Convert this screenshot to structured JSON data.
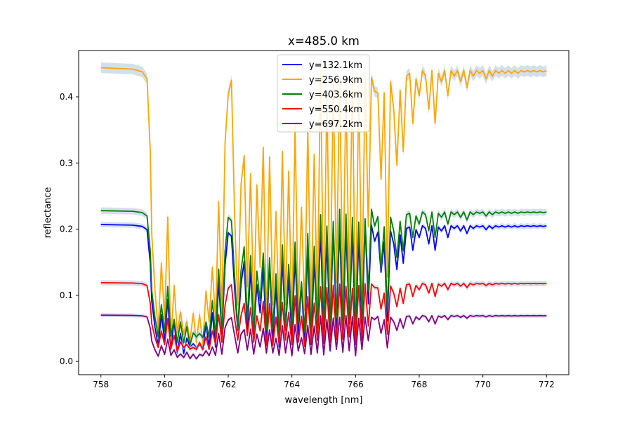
{
  "chart_data": {
    "type": "line",
    "title": "x=485.0 km",
    "xlabel": "wavelength [nm]",
    "ylabel": "reflectance",
    "xlim": [
      757.3,
      772.7
    ],
    "ylim": [
      -0.02,
      0.47
    ],
    "xticks": [
      758,
      760,
      762,
      764,
      766,
      768,
      770,
      772
    ],
    "yticks": [
      0.0,
      0.1,
      0.2,
      0.3,
      0.4
    ],
    "ytick_labels": [
      "0.0",
      "0.1",
      "0.2",
      "0.3",
      "0.4"
    ],
    "grid": false,
    "legend_position": "upper-center",
    "band_color": "#b0c4de",
    "series": [
      {
        "name": "y=132.1km",
        "color": "#0000ff",
        "continuum": 0.207,
        "floor": 0.012,
        "jitter": 0.004
      },
      {
        "name": "y=256.9km",
        "color": "#ffa500",
        "continuum": 0.444,
        "floor": 0.022,
        "jitter": 0.008
      },
      {
        "name": "y=403.6km",
        "color": "#008000",
        "continuum": 0.228,
        "floor": 0.025,
        "jitter": 0.005
      },
      {
        "name": "y=550.4km",
        "color": "#ff0000",
        "continuum": 0.119,
        "floor": 0.015,
        "jitter": 0.004
      },
      {
        "name": "y=697.2km",
        "color": "#800080",
        "continuum": 0.07,
        "floor": 0.004,
        "jitter": 0.003
      }
    ],
    "profile": {
      "x": [
        758.0,
        759.0,
        759.3,
        759.45,
        759.55,
        759.6,
        759.7,
        759.8,
        759.9,
        760.0,
        760.1,
        760.2,
        760.3,
        760.4,
        760.5,
        760.6,
        760.7,
        760.8,
        760.9,
        761.0,
        761.1,
        761.2,
        761.3,
        761.4,
        761.5,
        761.6,
        761.7,
        761.8,
        761.9,
        762.0,
        762.1,
        762.2,
        762.3,
        762.4,
        762.5,
        762.6,
        762.7,
        762.8,
        762.9,
        763.0,
        763.1,
        763.2,
        763.3,
        763.4,
        763.5,
        763.6,
        763.7,
        763.8,
        763.9,
        764.0,
        764.1,
        764.2,
        764.3,
        764.4,
        764.5,
        764.6,
        764.7,
        764.8,
        764.9,
        765.0,
        765.1,
        765.2,
        765.3,
        765.4,
        765.5,
        765.6,
        765.7,
        765.8,
        765.9,
        766.0,
        766.1,
        766.2,
        766.3,
        766.4,
        766.5,
        766.6,
        766.7,
        766.8,
        766.9,
        767.0,
        767.1,
        767.2,
        767.3,
        767.4,
        767.5,
        767.6,
        767.7,
        767.8,
        767.9,
        768.0,
        768.1,
        768.2,
        768.3,
        768.4,
        768.5,
        768.6,
        768.7,
        768.8,
        768.9,
        769.0,
        769.1,
        769.2,
        769.3,
        769.4,
        769.5,
        769.6,
        769.7,
        769.8,
        769.9,
        770.0,
        770.1,
        770.2,
        770.3,
        770.4,
        770.5,
        770.6,
        770.7,
        770.8,
        770.9,
        771.0,
        771.1,
        771.2,
        771.3,
        771.4,
        771.5,
        771.6,
        771.7,
        771.8,
        771.9,
        772.0
      ],
      "f": [
        1.0,
        0.995,
        0.985,
        0.96,
        0.7,
        0.4,
        0.2,
        0.06,
        0.3,
        0.1,
        0.45,
        0.05,
        0.22,
        0.02,
        0.14,
        0.03,
        0.12,
        0.02,
        0.09,
        0.03,
        0.1,
        0.04,
        0.2,
        0.06,
        0.3,
        0.08,
        0.55,
        0.12,
        0.7,
        0.92,
        0.94,
        0.5,
        0.15,
        0.55,
        0.7,
        0.2,
        0.65,
        0.12,
        0.55,
        0.3,
        0.7,
        0.1,
        0.68,
        0.12,
        0.5,
        0.08,
        0.73,
        0.15,
        0.6,
        0.1,
        0.78,
        0.15,
        0.5,
        0.1,
        0.8,
        0.1,
        0.72,
        0.15,
        0.97,
        0.12,
        0.9,
        0.15,
        0.95,
        0.2,
        0.98,
        0.15,
        0.96,
        0.2,
        0.95,
        0.1,
        0.93,
        0.18,
        0.97,
        0.4,
        0.98,
        0.9,
        0.94,
        0.6,
        0.88,
        0.25,
        0.95,
        0.85,
        0.65,
        0.92,
        0.7,
        0.97,
        0.98,
        0.8,
        0.96,
        0.9,
        0.99,
        0.97,
        0.85,
        0.99,
        0.8,
        0.98,
        0.95,
        0.99,
        0.9,
        0.99,
        0.97,
        0.99,
        0.95,
        0.99,
        0.93,
        0.99,
        0.97,
        0.99,
        0.98,
        0.99,
        0.96,
        0.99,
        0.97,
        0.99,
        0.98,
        0.99,
        0.98,
        0.99,
        0.98,
        0.99,
        0.98,
        0.99,
        0.985,
        0.99,
        0.985,
        0.99,
        0.985,
        0.99,
        0.985,
        0.99
      ]
    }
  }
}
